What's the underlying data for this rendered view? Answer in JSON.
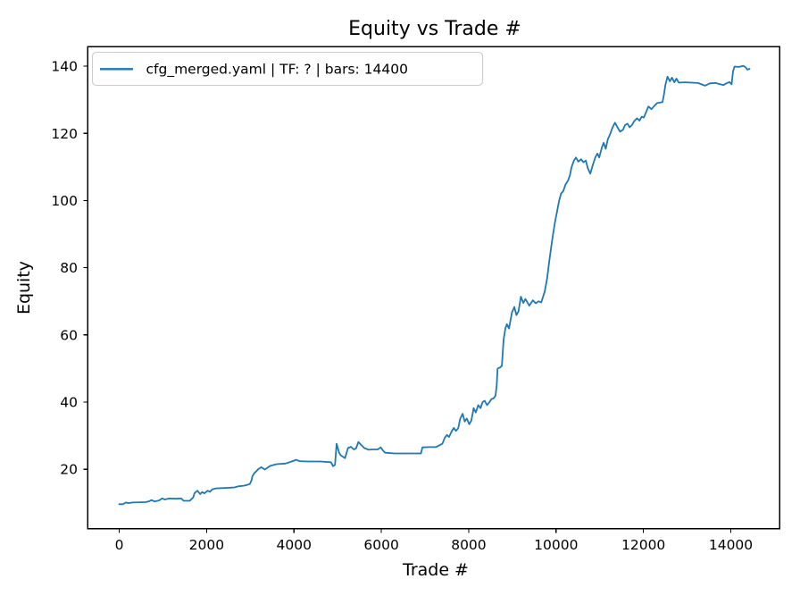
{
  "figure": {
    "background": "#ffffff"
  },
  "colors": {
    "series_line": "#1f77b4",
    "axis": "#000000",
    "legend_border": "#cccccc",
    "legend_background": "#ffffff"
  },
  "chart_data": {
    "type": "line",
    "title": "Equity vs Trade #",
    "xlabel": "Trade #",
    "ylabel": "Equity",
    "xlim": [
      -720,
      15120
    ],
    "ylim": [
      2.3,
      145.8
    ],
    "x_ticks": [
      0,
      2000,
      4000,
      6000,
      8000,
      10000,
      12000,
      14000
    ],
    "y_ticks": [
      20,
      40,
      60,
      80,
      100,
      120,
      140
    ],
    "grid": false,
    "legend": {
      "position": "upper-left",
      "entries": [
        {
          "label": "cfg_merged.yaml | TF: ? | bars: 14400",
          "color": "#1f77b4"
        }
      ]
    },
    "series": [
      {
        "name": "cfg_merged.yaml | TF: ? | bars: 14400",
        "color": "#1f77b4",
        "points": [
          [
            0,
            9.6
          ],
          [
            90,
            9.6
          ],
          [
            150,
            10.1
          ],
          [
            210,
            9.9
          ],
          [
            300,
            10.1
          ],
          [
            600,
            10.2
          ],
          [
            670,
            10.4
          ],
          [
            740,
            10.8
          ],
          [
            810,
            10.4
          ],
          [
            910,
            10.7
          ],
          [
            980,
            11.3
          ],
          [
            1045,
            11.0
          ],
          [
            1145,
            11.3
          ],
          [
            1300,
            11.2
          ],
          [
            1420,
            11.3
          ],
          [
            1475,
            10.6
          ],
          [
            1615,
            10.6
          ],
          [
            1693,
            11.6
          ],
          [
            1724,
            12.9
          ],
          [
            1790,
            13.6
          ],
          [
            1851,
            12.6
          ],
          [
            1900,
            13.2
          ],
          [
            1950,
            12.8
          ],
          [
            2025,
            13.6
          ],
          [
            2080,
            13.3
          ],
          [
            2127,
            14.0
          ],
          [
            2208,
            14.3
          ],
          [
            2400,
            14.4
          ],
          [
            2550,
            14.5
          ],
          [
            2640,
            14.6
          ],
          [
            2720,
            14.9
          ],
          [
            2850,
            15.1
          ],
          [
            2925,
            15.3
          ],
          [
            2990,
            15.6
          ],
          [
            3027,
            16.6
          ],
          [
            3048,
            17.9
          ],
          [
            3090,
            18.8
          ],
          [
            3130,
            19.3
          ],
          [
            3190,
            20.1
          ],
          [
            3253,
            20.6
          ],
          [
            3334,
            19.9
          ],
          [
            3457,
            21.0
          ],
          [
            3600,
            21.5
          ],
          [
            3805,
            21.7
          ],
          [
            3948,
            22.3
          ],
          [
            4050,
            22.8
          ],
          [
            4120,
            22.4
          ],
          [
            4300,
            22.3
          ],
          [
            4600,
            22.3
          ],
          [
            4848,
            22.1
          ],
          [
            4895,
            20.9
          ],
          [
            4940,
            21.3
          ],
          [
            4977,
            27.6
          ],
          [
            5032,
            25.0
          ],
          [
            5066,
            24.2
          ],
          [
            5168,
            23.3
          ],
          [
            5236,
            26.3
          ],
          [
            5304,
            26.7
          ],
          [
            5370,
            25.9
          ],
          [
            5420,
            26.2
          ],
          [
            5475,
            28.1
          ],
          [
            5543,
            27.2
          ],
          [
            5611,
            26.3
          ],
          [
            5713,
            25.8
          ],
          [
            5800,
            25.9
          ],
          [
            5918,
            25.9
          ],
          [
            5986,
            26.5
          ],
          [
            6050,
            25.4
          ],
          [
            6088,
            24.9
          ],
          [
            6300,
            24.7
          ],
          [
            6600,
            24.7
          ],
          [
            6907,
            24.7
          ],
          [
            6940,
            26.5
          ],
          [
            7100,
            26.6
          ],
          [
            7250,
            26.6
          ],
          [
            7398,
            27.6
          ],
          [
            7454,
            29.4
          ],
          [
            7502,
            30.2
          ],
          [
            7549,
            29.6
          ],
          [
            7604,
            31.1
          ],
          [
            7659,
            32.3
          ],
          [
            7706,
            31.4
          ],
          [
            7760,
            32.2
          ],
          [
            7808,
            35.1
          ],
          [
            7863,
            36.5
          ],
          [
            7910,
            34.2
          ],
          [
            7957,
            35.1
          ],
          [
            8012,
            33.4
          ],
          [
            8060,
            34.5
          ],
          [
            8114,
            38.2
          ],
          [
            8162,
            36.9
          ],
          [
            8217,
            39.1
          ],
          [
            8272,
            38.2
          ],
          [
            8319,
            40.0
          ],
          [
            8366,
            40.4
          ],
          [
            8421,
            39.1
          ],
          [
            8476,
            40.0
          ],
          [
            8523,
            40.9
          ],
          [
            8570,
            41.1
          ],
          [
            8615,
            41.9
          ],
          [
            8640,
            45.0
          ],
          [
            8662,
            50.0
          ],
          [
            8717,
            50.3
          ],
          [
            8760,
            50.8
          ],
          [
            8799,
            58.5
          ],
          [
            8840,
            61.9
          ],
          [
            8874,
            63.2
          ],
          [
            8922,
            61.9
          ],
          [
            8990,
            66.7
          ],
          [
            9045,
            68.3
          ],
          [
            9092,
            65.9
          ],
          [
            9140,
            67.0
          ],
          [
            9195,
            71.4
          ],
          [
            9249,
            69.5
          ],
          [
            9297,
            70.7
          ],
          [
            9387,
            68.7
          ],
          [
            9468,
            70.3
          ],
          [
            9536,
            69.4
          ],
          [
            9600,
            70.0
          ],
          [
            9660,
            69.7
          ],
          [
            9740,
            72.9
          ],
          [
            9795,
            76.9
          ],
          [
            9842,
            81.8
          ],
          [
            9890,
            86.3
          ],
          [
            9931,
            89.9
          ],
          [
            9979,
            93.9
          ],
          [
            10026,
            97.0
          ],
          [
            10067,
            99.8
          ],
          [
            10114,
            102.1
          ],
          [
            10163,
            102.8
          ],
          [
            10217,
            104.8
          ],
          [
            10272,
            105.9
          ],
          [
            10319,
            107.6
          ],
          [
            10353,
            109.9
          ],
          [
            10408,
            111.9
          ],
          [
            10455,
            112.8
          ],
          [
            10510,
            111.6
          ],
          [
            10572,
            112.3
          ],
          [
            10626,
            111.4
          ],
          [
            10680,
            111.9
          ],
          [
            10728,
            109.6
          ],
          [
            10783,
            108.0
          ],
          [
            10844,
            110.7
          ],
          [
            10899,
            112.9
          ],
          [
            10946,
            114.0
          ],
          [
            10987,
            112.8
          ],
          [
            11049,
            115.8
          ],
          [
            11090,
            117.2
          ],
          [
            11137,
            115.4
          ],
          [
            11186,
            118.3
          ],
          [
            11240,
            119.9
          ],
          [
            11289,
            121.7
          ],
          [
            11350,
            123.2
          ],
          [
            11411,
            121.7
          ],
          [
            11465,
            120.5
          ],
          [
            11534,
            121.1
          ],
          [
            11581,
            122.5
          ],
          [
            11636,
            122.9
          ],
          [
            11684,
            121.8
          ],
          [
            11740,
            122.5
          ],
          [
            11786,
            123.6
          ],
          [
            11854,
            124.5
          ],
          [
            11909,
            123.8
          ],
          [
            11964,
            125.0
          ],
          [
            12010,
            124.7
          ],
          [
            12060,
            126.3
          ],
          [
            12114,
            128.0
          ],
          [
            12182,
            127.2
          ],
          [
            12244,
            128.1
          ],
          [
            12312,
            129.0
          ],
          [
            12437,
            129.3
          ],
          [
            12469,
            131.5
          ],
          [
            12504,
            134.5
          ],
          [
            12551,
            136.9
          ],
          [
            12606,
            135.5
          ],
          [
            12653,
            136.6
          ],
          [
            12708,
            135.2
          ],
          [
            12756,
            136.3
          ],
          [
            12811,
            135.1
          ],
          [
            12950,
            135.2
          ],
          [
            13100,
            135.1
          ],
          [
            13250,
            135.0
          ],
          [
            13410,
            134.2
          ],
          [
            13520,
            134.9
          ],
          [
            13650,
            135.0
          ],
          [
            13833,
            134.4
          ],
          [
            13900,
            134.9
          ],
          [
            13970,
            135.3
          ],
          [
            14018,
            134.6
          ],
          [
            14052,
            138.5
          ],
          [
            14086,
            139.9
          ],
          [
            14180,
            139.8
          ],
          [
            14290,
            140.1
          ],
          [
            14345,
            139.6
          ],
          [
            14379,
            139.0
          ],
          [
            14430,
            139.2
          ]
        ]
      }
    ]
  }
}
